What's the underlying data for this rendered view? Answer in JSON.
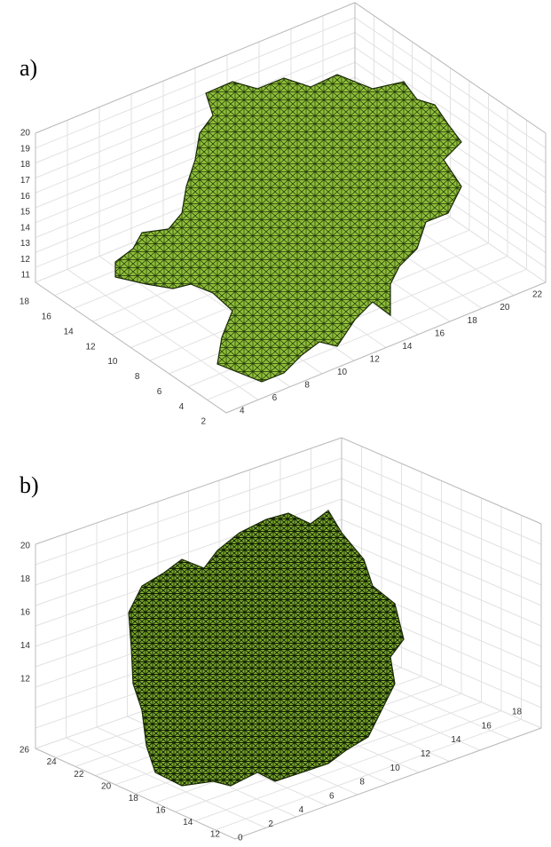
{
  "panels": [
    {
      "label": "a)",
      "z_ticks": [
        "20",
        "19",
        "18",
        "17",
        "16",
        "15",
        "14",
        "13",
        "12",
        "11"
      ],
      "y_ticks": [
        "18",
        "16",
        "14",
        "12",
        "10",
        "8",
        "6",
        "4",
        "2"
      ],
      "x_ticks": [
        "4",
        "6",
        "8",
        "10",
        "12",
        "14",
        "16",
        "18",
        "20",
        "22"
      ]
    },
    {
      "label": "b)",
      "z_ticks": [
        "20",
        "18",
        "16",
        "14",
        "12"
      ],
      "y_ticks": [
        "26",
        "24",
        "22",
        "20",
        "18",
        "16",
        "14",
        "12"
      ],
      "x_ticks": [
        "0",
        "2",
        "4",
        "6",
        "8",
        "10",
        "12",
        "14",
        "16",
        "18"
      ]
    }
  ]
}
